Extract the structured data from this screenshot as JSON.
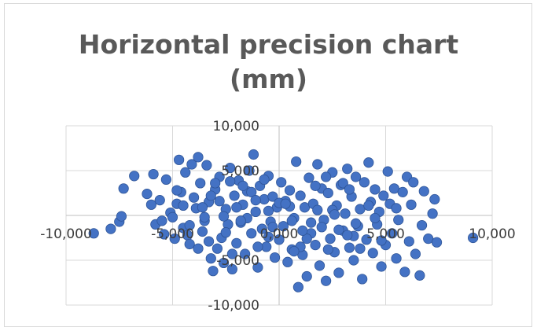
{
  "chart_data": {
    "type": "scatter",
    "title_lines": [
      "Horizontal precision chart",
      "(mm)"
    ],
    "xlabel": "",
    "ylabel": "",
    "xlim": [
      -10000,
      10000
    ],
    "ylim": [
      -10000,
      10000
    ],
    "x_ticks": [
      "-10,000",
      "-5,000",
      "0,000",
      "5,000",
      "10,000"
    ],
    "y_ticks": [
      "10,000",
      "5,000",
      "0,000",
      "-5,000",
      "-10,000"
    ],
    "grid": true,
    "legend": "none",
    "marker_color": "#4472C4",
    "marker_edge": "#2F5597",
    "series": [
      {
        "points": [
          [
            -8700,
            -2000
          ],
          [
            -7900,
            -1500
          ],
          [
            -7500,
            -700
          ],
          [
            -7400,
            -100
          ],
          [
            -7300,
            3000
          ],
          [
            -6800,
            4400
          ],
          [
            -6200,
            2400
          ],
          [
            -6000,
            1200
          ],
          [
            -5900,
            4600
          ],
          [
            -5800,
            -1000
          ],
          [
            -5600,
            1700
          ],
          [
            -5400,
            -2100
          ],
          [
            -5300,
            4000
          ],
          [
            -5100,
            300
          ],
          [
            -5000,
            -200
          ],
          [
            -4900,
            -2600
          ],
          [
            -4800,
            1300
          ],
          [
            -4700,
            6200
          ],
          [
            -4600,
            2600
          ],
          [
            -4500,
            -1400
          ],
          [
            -4400,
            4800
          ],
          [
            -4300,
            -2200
          ],
          [
            -4200,
            -3200
          ],
          [
            -4100,
            5700
          ],
          [
            -4000,
            2000
          ],
          [
            -3900,
            800
          ],
          [
            -3800,
            6500
          ],
          [
            -3700,
            3600
          ],
          [
            -3600,
            -1800
          ],
          [
            -3500,
            -600
          ],
          [
            -3400,
            5600
          ],
          [
            -3300,
            1500
          ],
          [
            -3200,
            -4800
          ],
          [
            -3100,
            -6200
          ],
          [
            -3000,
            2900
          ],
          [
            -2900,
            -3700
          ],
          [
            -2800,
            4300
          ],
          [
            -2700,
            -2500
          ],
          [
            -2600,
            -5300
          ],
          [
            -2500,
            700
          ],
          [
            -2400,
            -1000
          ],
          [
            -2300,
            5300
          ],
          [
            -2200,
            -6000
          ],
          [
            -2100,
            2200
          ],
          [
            -2000,
            -3100
          ],
          [
            -1900,
            3900
          ],
          [
            -1800,
            -800
          ],
          [
            -1700,
            1200
          ],
          [
            -1600,
            -4300
          ],
          [
            -1500,
            2700
          ],
          [
            -1400,
            5000
          ],
          [
            -1300,
            -2000
          ],
          [
            -1200,
            6800
          ],
          [
            -1100,
            400
          ],
          [
            -1000,
            -5800
          ],
          [
            -900,
            3300
          ],
          [
            -800,
            -1500
          ],
          [
            -700,
            1800
          ],
          [
            -600,
            -3500
          ],
          [
            -500,
            4400
          ],
          [
            -400,
            -700
          ],
          [
            -300,
            2100
          ],
          [
            -200,
            -4700
          ],
          [
            -100,
            900
          ],
          [
            0,
            -2700
          ],
          [
            100,
            3700
          ],
          [
            200,
            -1200
          ],
          [
            300,
            1600
          ],
          [
            400,
            -5200
          ],
          [
            500,
            2800
          ],
          [
            600,
            -3800
          ],
          [
            700,
            -300
          ],
          [
            800,
            6000
          ],
          [
            900,
            -8000
          ],
          [
            1000,
            2200
          ],
          [
            1100,
            -4400
          ],
          [
            1200,
            900
          ],
          [
            1300,
            -6800
          ],
          [
            1400,
            4200
          ],
          [
            1500,
            -2000
          ],
          [
            1600,
            1300
          ],
          [
            1700,
            -3300
          ],
          [
            1800,
            5700
          ],
          [
            1900,
            -5600
          ],
          [
            2000,
            3000
          ],
          [
            2100,
            -500
          ],
          [
            2200,
            -7300
          ],
          [
            2300,
            2500
          ],
          [
            2400,
            -2600
          ],
          [
            2500,
            4800
          ],
          [
            2600,
            -4100
          ],
          [
            2700,
            1100
          ],
          [
            2800,
            -6400
          ],
          [
            2900,
            3400
          ],
          [
            3000,
            -1700
          ],
          [
            3100,
            200
          ],
          [
            3200,
            5200
          ],
          [
            3300,
            -3600
          ],
          [
            3400,
            2100
          ],
          [
            3500,
            -5000
          ],
          [
            3600,
            4300
          ],
          [
            3700,
            -1200
          ],
          [
            3800,
            700
          ],
          [
            3900,
            -7100
          ],
          [
            4000,
            3700
          ],
          [
            4100,
            -2700
          ],
          [
            4200,
            5900
          ],
          [
            4300,
            1500
          ],
          [
            4400,
            -4200
          ],
          [
            4500,
            2900
          ],
          [
            4600,
            -1000
          ],
          [
            4700,
            400
          ],
          [
            4800,
            -5700
          ],
          [
            4900,
            2200
          ],
          [
            5000,
            -3300
          ],
          [
            5100,
            4900
          ],
          [
            5200,
            1300
          ],
          [
            5300,
            -2000
          ],
          [
            5400,
            3000
          ],
          [
            5500,
            -4800
          ],
          [
            5600,
            -500
          ],
          [
            5800,
            2600
          ],
          [
            5900,
            -6300
          ],
          [
            6000,
            4300
          ],
          [
            6100,
            -2900
          ],
          [
            6200,
            1200
          ],
          [
            6300,
            3700
          ],
          [
            6400,
            -4300
          ],
          [
            6600,
            -6700
          ],
          [
            6700,
            -1100
          ],
          [
            6800,
            2700
          ],
          [
            7000,
            -2600
          ],
          [
            7200,
            200
          ],
          [
            7300,
            1800
          ],
          [
            7400,
            -3000
          ],
          [
            9100,
            -2500
          ],
          [
            -3500,
            -200
          ],
          [
            -2500,
            -1900
          ],
          [
            -1500,
            -300
          ],
          [
            -500,
            -2400
          ],
          [
            500,
            1000
          ],
          [
            1500,
            -800
          ],
          [
            2500,
            600
          ],
          [
            3500,
            -2300
          ],
          [
            4500,
            -300
          ],
          [
            -4500,
            1100
          ],
          [
            -2000,
            900
          ],
          [
            0,
            1400
          ],
          [
            2000,
            -1300
          ],
          [
            -3000,
            3600
          ],
          [
            3000,
            3600
          ],
          [
            -1000,
            -3500
          ],
          [
            1000,
            -3500
          ],
          [
            -5500,
            -600
          ],
          [
            5500,
            800
          ],
          [
            -3800,
            -3700
          ],
          [
            3800,
            -3700
          ],
          [
            -2200,
            -4300
          ],
          [
            2200,
            4300
          ],
          [
            -500,
            500
          ],
          [
            600,
            -600
          ],
          [
            -1700,
            3300
          ],
          [
            1700,
            3300
          ],
          [
            -2800,
            1600
          ],
          [
            2800,
            -1600
          ],
          [
            -3200,
            2200
          ],
          [
            3200,
            -2200
          ],
          [
            -4200,
            -1100
          ],
          [
            4200,
            1100
          ],
          [
            -1300,
            2600
          ],
          [
            1300,
            -2600
          ],
          [
            -2600,
            -100
          ],
          [
            2600,
            100
          ],
          [
            -3600,
            900
          ],
          [
            3600,
            -900
          ],
          [
            -700,
            4000
          ],
          [
            700,
            -4000
          ],
          [
            -4800,
            2800
          ],
          [
            4800,
            -2800
          ],
          [
            -1800,
            -600
          ],
          [
            1800,
            600
          ],
          [
            -300,
            -1300
          ],
          [
            300,
            1300
          ],
          [
            -2300,
            3800
          ],
          [
            2300,
            -3800
          ],
          [
            -3300,
            -2900
          ],
          [
            3300,
            2900
          ],
          [
            -1100,
            1700
          ],
          [
            1100,
            -1700
          ]
        ]
      }
    ]
  }
}
